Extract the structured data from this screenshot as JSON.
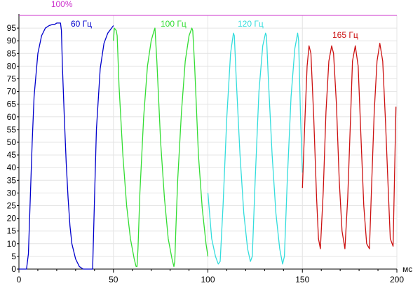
{
  "chart_data": {
    "type": "line",
    "title": "",
    "xlabel": "мс",
    "ylabel": "",
    "xlim": [
      0,
      200
    ],
    "ylim": [
      0,
      100
    ],
    "xticks": [
      0,
      50,
      100,
      150,
      200
    ],
    "yticks": [
      0,
      5,
      10,
      15,
      20,
      25,
      30,
      35,
      40,
      45,
      50,
      55,
      60,
      65,
      70,
      75,
      80,
      85,
      90,
      95
    ],
    "grid": true,
    "reference_line": {
      "value": 100,
      "label": "100%",
      "color": "#cc33cc"
    },
    "series": [
      {
        "name": "60 Гц",
        "color": "#0000cc",
        "x": [
          0,
          4,
          5,
          6,
          7,
          8,
          10,
          12,
          14,
          16,
          18,
          19,
          20,
          21,
          22,
          22.5,
          23,
          24,
          25,
          26,
          27,
          28,
          30,
          32,
          34,
          36,
          37,
          38,
          39,
          40,
          41,
          43,
          45,
          47,
          49,
          50
        ],
        "y": [
          0,
          0,
          6,
          28,
          50,
          68,
          85,
          92,
          95,
          96,
          96.5,
          96.5,
          97,
          97,
          97,
          94,
          80,
          60,
          42,
          28,
          17,
          10,
          4,
          1,
          0,
          0,
          0,
          0,
          0,
          28,
          55,
          79,
          89,
          93,
          95,
          96
        ]
      },
      {
        "name": "100 Гц",
        "color": "#33dd33",
        "x": [
          50,
          50.5,
          51.5,
          52,
          53,
          55,
          57,
          59,
          61,
          62,
          62.5,
          63,
          64,
          66,
          68,
          70,
          71.5,
          72,
          73,
          75,
          77,
          79,
          81,
          82,
          82.5,
          83,
          84,
          86,
          88,
          90,
          91.5,
          92,
          93,
          95,
          97,
          99,
          100
        ],
        "y": [
          90,
          95,
          94,
          92,
          72,
          45,
          25,
          12,
          4,
          1,
          1,
          8,
          30,
          60,
          80,
          90,
          94,
          95,
          82,
          50,
          28,
          12,
          4,
          1,
          3,
          15,
          35,
          62,
          82,
          92,
          95,
          94,
          80,
          45,
          24,
          10,
          5
        ]
      },
      {
        "name": "120 Гц",
        "color": "#33dddd",
        "x": [
          100,
          102,
          104,
          105.5,
          106.5,
          108,
          110,
          112,
          113.5,
          114,
          115,
          117,
          119,
          121,
          122.5,
          123.5,
          125,
          127,
          129,
          130.5,
          131,
          132,
          134,
          136,
          138,
          139.5,
          140.5,
          142,
          144,
          146,
          147.5,
          148,
          149,
          150
        ],
        "y": [
          30,
          12,
          5,
          2,
          3,
          25,
          60,
          85,
          93,
          92,
          75,
          45,
          22,
          8,
          3,
          5,
          35,
          70,
          88,
          93,
          92,
          75,
          45,
          22,
          8,
          2,
          5,
          35,
          68,
          87,
          93,
          90,
          60,
          38
        ]
      },
      {
        "name": "165 Гц",
        "color": "#cc1111",
        "x": [
          150,
          150.5,
          151.5,
          152.5,
          153.5,
          154.5,
          156,
          157.5,
          158.5,
          159.5,
          161,
          162.5,
          164,
          165.5,
          166.5,
          168,
          169.5,
          171,
          172.5,
          174,
          175.5,
          176.5,
          178,
          179.5,
          181,
          182.5,
          184,
          185.5,
          186.5,
          188,
          189.5,
          191,
          192.5,
          194,
          195.5,
          196.5,
          198,
          199.5
        ],
        "y": [
          32,
          42,
          62,
          80,
          88,
          85,
          60,
          28,
          12,
          8,
          30,
          62,
          82,
          88,
          85,
          65,
          35,
          15,
          8,
          28,
          60,
          82,
          88,
          80,
          52,
          25,
          10,
          8,
          30,
          62,
          82,
          89,
          82,
          58,
          30,
          12,
          9,
          64
        ]
      }
    ]
  },
  "labels": {
    "reference": "100%",
    "x_unit": "мс",
    "s60": "60 Гц",
    "s100": "100 Гц",
    "s120": "120 Гц",
    "s165": "165 Гц"
  }
}
